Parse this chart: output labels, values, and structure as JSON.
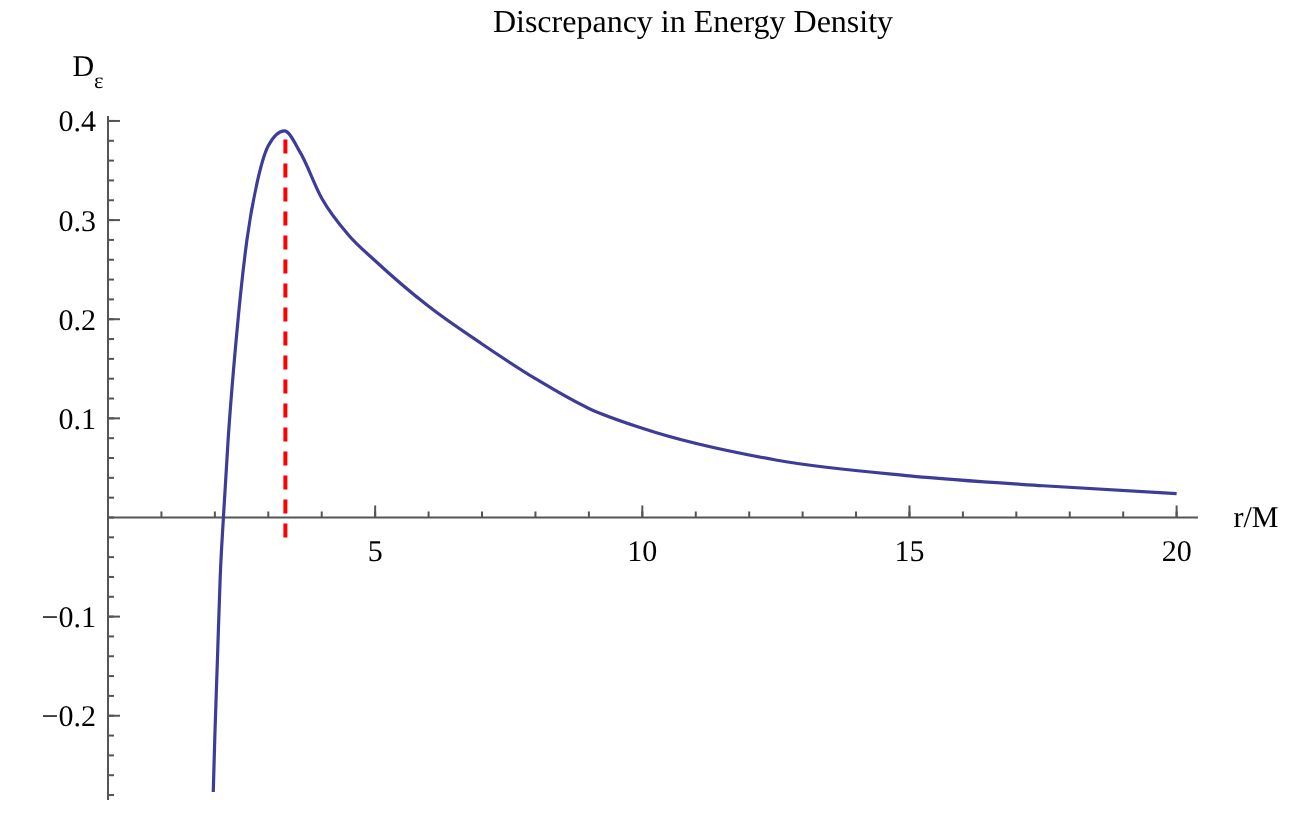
{
  "chart_data": {
    "type": "line",
    "title": "Discrepancy in Energy Density",
    "xlabel": "r/M",
    "ylabel": "D$_{ε}$",
    "series": [
      {
        "color": "#3d3d99",
        "x": [
          1.97,
          2.0,
          2.05,
          2.1,
          2.16,
          2.25,
          2.4,
          2.6,
          2.8,
          3.0,
          3.3,
          3.6,
          4.0,
          4.5,
          5,
          6,
          7,
          8,
          9,
          10,
          12.5,
          15,
          17.5,
          20
        ],
        "values": [
          -0.277,
          -0.22,
          -0.14,
          -0.06,
          0,
          0.08,
          0.18,
          0.28,
          0.34,
          0.375,
          0.39,
          0.368,
          0.322,
          0.285,
          0.259,
          0.213,
          0.175,
          0.14,
          0.11,
          0.09,
          0.058,
          0.042,
          0.032,
          0.024
        ]
      }
    ],
    "xlim": [
      0,
      20.4
    ],
    "ylim": [
      -0.285,
      0.405
    ],
    "xticks": [
      5,
      10,
      15,
      20
    ],
    "yticks": [
      -0.2,
      -0.1,
      0.1,
      0.2,
      0.3,
      0.4
    ],
    "ref_lines": [
      {
        "axis": "x",
        "value": 3.32,
        "color": "#ff0000",
        "line_style": "dashed"
      }
    ],
    "grid": false,
    "marker": "none"
  }
}
